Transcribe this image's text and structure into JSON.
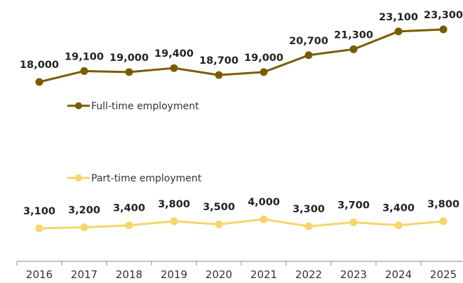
{
  "chart_data": {
    "type": "line",
    "categories": [
      "2016",
      "2017",
      "2018",
      "2019",
      "2020",
      "2021",
      "2022",
      "2023",
      "2024",
      "2025"
    ],
    "series": [
      {
        "name": "Full-time employment",
        "color": "#7a5c00",
        "values": [
          18000,
          19100,
          19000,
          19400,
          18700,
          19000,
          20700,
          21300,
          23100,
          23300
        ],
        "labels": [
          "18,000",
          "19,100",
          "19,000",
          "19,400",
          "18,700",
          "19,000",
          "20,700",
          "21,300",
          "23,100",
          "23,300"
        ]
      },
      {
        "name": "Part-time employment",
        "color": "#f7d56a",
        "values": [
          3100,
          3200,
          3400,
          3800,
          3500,
          4000,
          3300,
          3700,
          3400,
          3800
        ],
        "labels": [
          "3,100",
          "3,200",
          "3,400",
          "3,800",
          "3,500",
          "4,000",
          "3,300",
          "3,700",
          "3,400",
          "3,800"
        ]
      }
    ],
    "legend_placement": "inline, above each series",
    "grid": false
  }
}
